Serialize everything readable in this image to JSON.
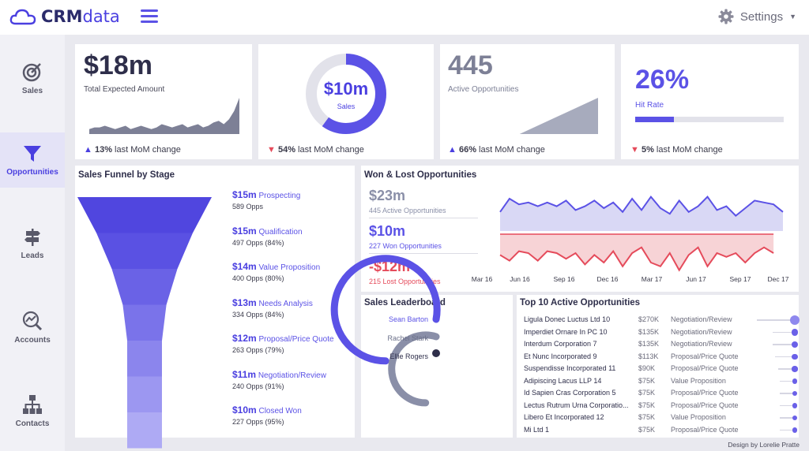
{
  "app": {
    "logo_bold": "CRM",
    "logo_light": "data",
    "settings_label": "Settings"
  },
  "sidebar": {
    "items": [
      {
        "label": "Sales",
        "icon": "target-icon"
      },
      {
        "label": "Opportunities",
        "icon": "funnel-icon"
      },
      {
        "label": "Leads",
        "icon": "signpost-icon"
      },
      {
        "label": "Accounts",
        "icon": "chart-search-icon"
      },
      {
        "label": "Contacts",
        "icon": "org-chart-icon"
      }
    ]
  },
  "kpis": {
    "expected": {
      "value": "$18m",
      "label": "Total Expected Amount",
      "change": "13%",
      "change_text": "last MoM change",
      "trend": [
        3,
        4,
        4,
        5,
        4,
        3,
        4,
        5,
        3,
        4,
        5,
        4,
        3,
        4,
        6,
        5,
        4,
        5,
        6,
        4,
        5,
        6,
        4,
        5,
        7,
        8,
        6,
        9,
        14,
        22
      ]
    },
    "sales": {
      "value": "$10m",
      "label": "Sales",
      "change": "54%",
      "change_text": "last MoM change",
      "ring_fraction": 0.6
    },
    "active": {
      "value": "445",
      "label": "Active Opportunities",
      "change": "66%",
      "change_text": "last MoM change",
      "trend": [
        0,
        0,
        0,
        0,
        0,
        0,
        0,
        0,
        0,
        0,
        0,
        0,
        0,
        0,
        1,
        2,
        3,
        4,
        5,
        6,
        7,
        8,
        9,
        10,
        11,
        12,
        13,
        14,
        15,
        16
      ]
    },
    "hit": {
      "value": "26%",
      "label": "Hit Rate",
      "change": "5%",
      "change_text": "last MoM change",
      "bar_fraction": 0.26
    }
  },
  "funnel": {
    "title": "Sales Funnel by Stage",
    "stages": [
      {
        "amount": "$15m",
        "name": "Prospecting",
        "opps": "589 Opps"
      },
      {
        "amount": "$15m",
        "name": "Qualification",
        "opps": "497 Opps (84%)"
      },
      {
        "amount": "$14m",
        "name": "Value Proposition",
        "opps": "400 Opps (80%)"
      },
      {
        "amount": "$13m",
        "name": "Needs Analysis",
        "opps": "334 Opps (84%)"
      },
      {
        "amount": "$12m",
        "name": "Proposal/Price Quote",
        "opps": "263 Opps (79%)"
      },
      {
        "amount": "$11m",
        "name": "Negotiation/Review",
        "opps": "240 Opps (91%)"
      },
      {
        "amount": "$10m",
        "name": "Closed Won",
        "opps": "227 Opps (95%)"
      }
    ]
  },
  "wonlost": {
    "title": "Won & Lost Opportunities",
    "active_value": "$23m",
    "active_label": "445 Active Opportunities",
    "won_value": "$10m",
    "won_label": "227 Won Opportunities",
    "lost_value": "-$12m",
    "lost_label": "215 Lost Opportunities",
    "x_labels": [
      "Mar 16",
      "Jun 16",
      "Sep 16",
      "Dec 16",
      "Mar 17",
      "Jun 17",
      "Sep 17",
      "Dec 17"
    ],
    "won_series": [
      0.6,
      0.25,
      0.4,
      0.35,
      0.45,
      0.35,
      0.45,
      0.3,
      0.55,
      0.45,
      0.3,
      0.5,
      0.35,
      0.6,
      0.25,
      0.55,
      0.2,
      0.5,
      0.65,
      0.3,
      0.6,
      0.45,
      0.2,
      0.55,
      0.45,
      0.7,
      0.5,
      0.3,
      0.35,
      0.4,
      0.6
    ],
    "lost_series": [
      0.55,
      0.7,
      0.45,
      0.5,
      0.7,
      0.45,
      0.5,
      0.65,
      0.5,
      0.8,
      0.55,
      0.75,
      0.45,
      0.85,
      0.5,
      0.35,
      0.75,
      0.85,
      0.5,
      0.95,
      0.55,
      0.35,
      0.85,
      0.5,
      0.6,
      0.5,
      0.75,
      0.5,
      0.35,
      0.5,
      0.25
    ]
  },
  "leaderboard": {
    "title": "Sales Leaderboard",
    "names": [
      "Sean Barton",
      "Rachel Stark",
      "Ellie Rogers"
    ],
    "fractions": [
      0.78,
      0.55,
      0.02
    ]
  },
  "top10": {
    "title": "Top 10 Active Opportunities",
    "rows": [
      {
        "name": "Ligula Donec Luctus Ltd 10",
        "amount": "$270K",
        "stage": "Negotiation/Review",
        "fraction": 1.0
      },
      {
        "name": "Imperdiet Ornare In PC 10",
        "amount": "$135K",
        "stage": "Negotiation/Review",
        "fraction": 0.5
      },
      {
        "name": "Interdum Corporation 7",
        "amount": "$135K",
        "stage": "Negotiation/Review",
        "fraction": 0.5
      },
      {
        "name": "Et Nunc Incorporated 9",
        "amount": "$113K",
        "stage": "Proposal/Price Quote",
        "fraction": 0.42
      },
      {
        "name": "Suspendisse Incorporated 11",
        "amount": "$90K",
        "stage": "Proposal/Price Quote",
        "fraction": 0.33
      },
      {
        "name": "Adipiscing Lacus LLP 14",
        "amount": "$75K",
        "stage": "Value Proposition",
        "fraction": 0.28
      },
      {
        "name": "Id Sapien Cras Corporation 5",
        "amount": "$75K",
        "stage": "Proposal/Price Quote",
        "fraction": 0.28
      },
      {
        "name": "Lectus Rutrum Urna Corporatio...",
        "amount": "$75K",
        "stage": "Proposal/Price Quote",
        "fraction": 0.28
      },
      {
        "name": "Libero Et Incorporated 12",
        "amount": "$75K",
        "stage": "Value Proposition",
        "fraction": 0.28
      },
      {
        "name": "Mi Ltd 1",
        "amount": "$75K",
        "stage": "Proposal/Price Quote",
        "fraction": 0.28
      }
    ]
  },
  "credit": "Design by Lorelie Pratte",
  "colors": {
    "accent": "#5b52e6",
    "grey": "#8a8fa8",
    "red": "#e54b5b",
    "won_fill": "#d9d8f5",
    "lost_fill": "#f7d3d6"
  }
}
